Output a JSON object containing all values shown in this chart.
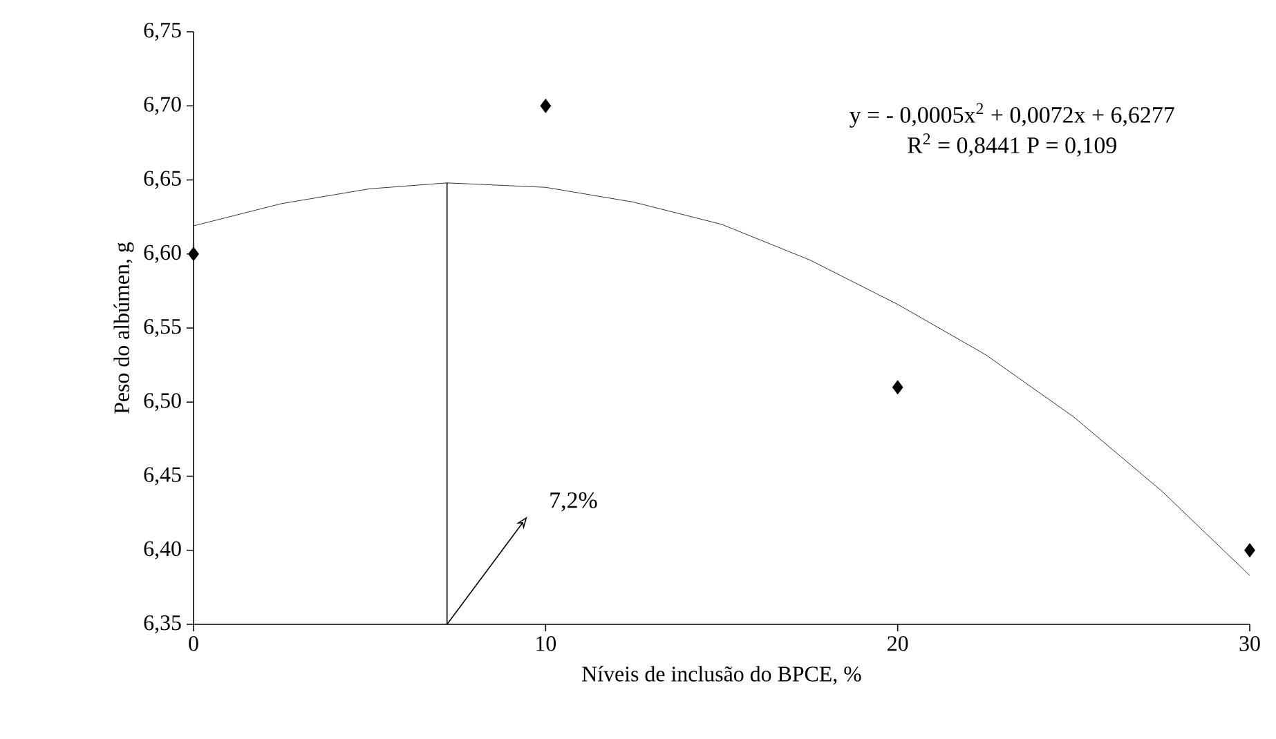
{
  "chart_data": {
    "type": "scatter",
    "xlabel": "Níveis de  inclusão do BPCE, %",
    "ylabel": "Peso do albúmen, g",
    "series": [
      {
        "color": "#000000",
        "marker": "diamond",
        "x": [
          0,
          10,
          20,
          30
        ],
        "values": [
          6.6,
          6.7,
          6.51,
          6.4
        ]
      },
      {
        "type": "line",
        "color": "#000000",
        "marker": "none",
        "line_style": "solid",
        "x": [
          0,
          2.5,
          5,
          7.2,
          10,
          12.5,
          15,
          17.5,
          20,
          22.5,
          25,
          27.5,
          30
        ],
        "values": [
          6.619,
          6.634,
          6.644,
          6.648,
          6.645,
          6.635,
          6.62,
          6.596,
          6.566,
          6.532,
          6.49,
          6.44,
          6.383
        ]
      }
    ],
    "xlim": [
      0,
      30
    ],
    "xticks": [
      0,
      10,
      20,
      30
    ],
    "ylim": [
      6.35,
      6.75
    ],
    "yticks": [
      {
        "value": 6.35,
        "label": "6,35"
      },
      {
        "value": 6.4,
        "label": "6,40"
      },
      {
        "value": 6.45,
        "label": "6,45"
      },
      {
        "value": 6.5,
        "label": "6,50"
      },
      {
        "value": 6.55,
        "label": "6,55"
      },
      {
        "value": 6.6,
        "label": "6,60"
      },
      {
        "value": 6.65,
        "label": "6,65"
      },
      {
        "value": 6.7,
        "label": "6,70"
      },
      {
        "value": 6.75,
        "label": "6,75"
      }
    ],
    "ref_lines": [
      {
        "axis": "x",
        "value": 7.2,
        "color": "#000000"
      }
    ],
    "annotations": [
      "y = - 0,0005x$^{2}$ + 0,0072x + 6,6277",
      "R$^{2}$ = 0,8441   P = 0,109",
      {
        "text": "7,2%",
        "x": 7.2,
        "y": 6.35
      }
    ],
    "grid": false
  }
}
